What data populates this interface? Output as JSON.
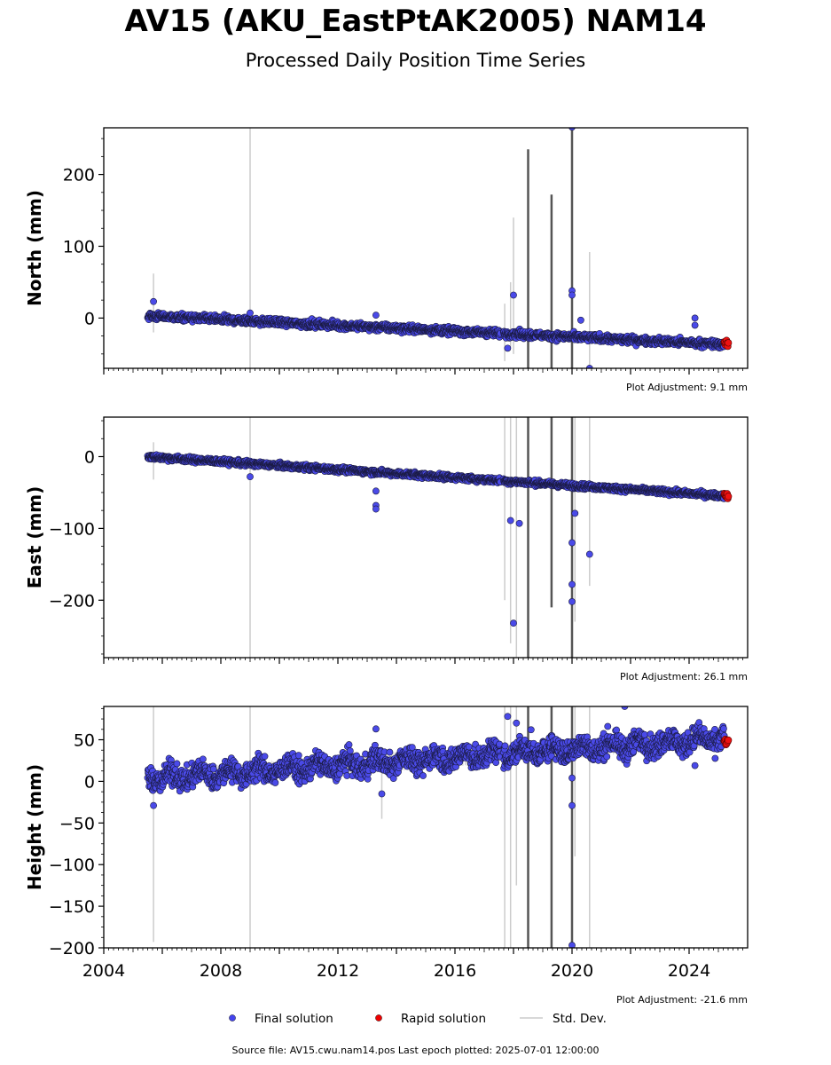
{
  "header": {
    "title": "AV15 (AKU_EastPtAK2005) NAM14",
    "subtitle": "Processed Daily Position Time Series"
  },
  "footer": {
    "source": "Source file: AV15.cwu.nam14.pos  Last epoch plotted: 2025-07-01 12:00:00"
  },
  "legend": {
    "position": "bottom-center",
    "items": [
      {
        "label": "Final solution",
        "color": "#4444ee",
        "marker": "dot"
      },
      {
        "label": "Rapid solution",
        "color": "#ee0000",
        "marker": "dot"
      },
      {
        "label": "Std. Dev.",
        "color": "#cccccc",
        "marker": "line"
      }
    ]
  },
  "chart_data": [
    {
      "type": "scatter",
      "id": "north",
      "ylabel": "North (mm)",
      "xlim": [
        2004,
        2026
      ],
      "ylim": [
        -70,
        265
      ],
      "yticks": [
        0,
        100,
        200
      ],
      "ytick_labels": [
        "0",
        "100",
        "200"
      ],
      "xticks_labeled": false,
      "adjustment_note": "Plot Adjustment: 9.1 mm",
      "trend": {
        "start": [
          2005.5,
          3
        ],
        "end": [
          2025.3,
          -37
        ],
        "noise": 4
      },
      "rapid": {
        "from": 2025.2,
        "to": 2025.35,
        "value": -36
      },
      "outliers": [
        [
          2005.7,
          23
        ],
        [
          2018.0,
          32
        ],
        [
          2020.0,
          38
        ],
        [
          2020.0,
          32
        ],
        [
          2020.3,
          -3
        ],
        [
          2024.2,
          0
        ],
        [
          2024.2,
          -10
        ],
        [
          2020.0,
          266
        ],
        [
          2020.6,
          -70
        ],
        [
          2017.8,
          -42
        ],
        [
          2013.3,
          4
        ],
        [
          2009.0,
          7
        ]
      ],
      "errorbars": [
        [
          2005.7,
          -20,
          62
        ],
        [
          2009.0,
          -70,
          266
        ],
        [
          2017.7,
          -60,
          20
        ],
        [
          2017.9,
          -40,
          50
        ],
        [
          2018.0,
          -50,
          140
        ],
        [
          2018.5,
          -70,
          235
        ],
        [
          2019.3,
          -70,
          172
        ],
        [
          2020.0,
          -70,
          266
        ],
        [
          2020.6,
          -70,
          92
        ]
      ]
    },
    {
      "type": "scatter",
      "id": "east",
      "ylabel": "East (mm)",
      "xlim": [
        2004,
        2026
      ],
      "ylim": [
        -280,
        55
      ],
      "yticks": [
        0,
        -100,
        -200
      ],
      "ytick_labels": [
        "0",
        "−100",
        "−200"
      ],
      "xticks_labeled": false,
      "adjustment_note": "Plot Adjustment: 26.1 mm",
      "trend": {
        "start": [
          2005.5,
          0
        ],
        "end": [
          2025.3,
          -55
        ],
        "noise": 3
      },
      "rapid": {
        "from": 2025.2,
        "to": 2025.35,
        "value": -55
      },
      "outliers": [
        [
          2013.3,
          -68
        ],
        [
          2013.3,
          -73
        ],
        [
          2013.3,
          -48
        ],
        [
          2017.9,
          -89
        ],
        [
          2018.2,
          -93
        ],
        [
          2018.0,
          -232
        ],
        [
          2020.0,
          -120
        ],
        [
          2020.0,
          -178
        ],
        [
          2020.0,
          -202
        ],
        [
          2020.1,
          -79
        ],
        [
          2020.6,
          -136
        ],
        [
          2009.0,
          -28
        ]
      ],
      "errorbars": [
        [
          2005.7,
          -32,
          20
        ],
        [
          2009.0,
          -280,
          55
        ],
        [
          2017.7,
          -200,
          55
        ],
        [
          2017.9,
          -260,
          55
        ],
        [
          2018.1,
          -280,
          55
        ],
        [
          2018.5,
          -280,
          55
        ],
        [
          2019.3,
          -210,
          55
        ],
        [
          2020.0,
          -280,
          55
        ],
        [
          2020.1,
          -230,
          55
        ],
        [
          2020.6,
          -180,
          55
        ]
      ]
    },
    {
      "type": "scatter",
      "id": "height",
      "ylabel": "Height (mm)",
      "xlim": [
        2004,
        2026
      ],
      "ylim": [
        -200,
        90
      ],
      "yticks": [
        50,
        0,
        -50,
        -100,
        -150,
        -200
      ],
      "ytick_labels": [
        "50",
        "0",
        "−50",
        "−100",
        "−150",
        "−200"
      ],
      "xticks_labeled": true,
      "xticks": [
        2004,
        2008,
        2012,
        2016,
        2020,
        2024
      ],
      "xtick_labels": [
        "2004",
        "2008",
        "2012",
        "2016",
        "2020",
        "2024"
      ],
      "adjustment_note": "Plot Adjustment: -21.6 mm",
      "trend": {
        "start": [
          2005.5,
          3
        ],
        "end": [
          2025.3,
          52
        ],
        "noise": 11
      },
      "rapid": {
        "from": 2025.2,
        "to": 2025.35,
        "value": 48
      },
      "outliers": [
        [
          2005.7,
          -29
        ],
        [
          2013.5,
          -15
        ],
        [
          2017.8,
          78
        ],
        [
          2018.1,
          70
        ],
        [
          2018.6,
          62
        ],
        [
          2020.0,
          -29
        ],
        [
          2020.0,
          4
        ],
        [
          2020.0,
          -197
        ],
        [
          2021.8,
          90
        ],
        [
          2024.2,
          19
        ],
        [
          2013.3,
          63
        ]
      ],
      "errorbars": [
        [
          2005.7,
          -193,
          90
        ],
        [
          2009.0,
          -200,
          90
        ],
        [
          2013.5,
          -45,
          10
        ],
        [
          2017.7,
          -200,
          90
        ],
        [
          2017.9,
          -200,
          90
        ],
        [
          2018.1,
          -125,
          90
        ],
        [
          2018.5,
          -200,
          90
        ],
        [
          2019.3,
          -200,
          90
        ],
        [
          2020.0,
          -200,
          90
        ],
        [
          2020.1,
          -90,
          90
        ],
        [
          2020.6,
          -200,
          90
        ]
      ]
    }
  ]
}
